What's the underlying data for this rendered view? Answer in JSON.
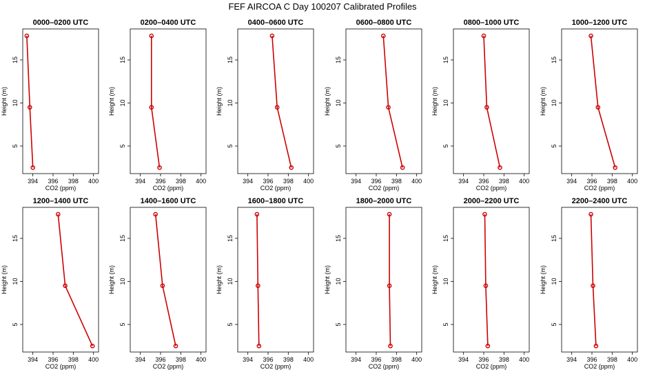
{
  "figure_title": "FEF AIRCOA C  Day 100207  Calibrated Profiles",
  "colors": {
    "series": "#cc0000",
    "frame": "#000000",
    "background": "#ffffff"
  },
  "chart_data": {
    "type": "line",
    "xlabel": "CO2 (ppm)",
    "ylabel": "Height (m)",
    "xlim": [
      393,
      400.5
    ],
    "ylim": [
      1.8,
      18.6
    ],
    "xticks": [
      394,
      396,
      398,
      400
    ],
    "yticks": [
      5,
      10,
      15
    ],
    "heights": [
      2.5,
      9.5,
      17.8
    ],
    "panels": [
      {
        "title": "0000–0200 UTC",
        "co2": [
          394.0,
          393.7,
          393.4
        ]
      },
      {
        "title": "0200–0400 UTC",
        "co2": [
          395.9,
          395.1,
          395.1
        ]
      },
      {
        "title": "0400–0600 UTC",
        "co2": [
          398.3,
          396.9,
          396.4
        ]
      },
      {
        "title": "0600–0800 UTC",
        "co2": [
          398.6,
          397.2,
          396.7
        ]
      },
      {
        "title": "0800–1000 UTC",
        "co2": [
          397.6,
          396.3,
          396.0
        ]
      },
      {
        "title": "1000–1200 UTC",
        "co2": [
          398.3,
          396.6,
          395.9
        ]
      },
      {
        "title": "1200–1400 UTC",
        "co2": [
          399.9,
          397.2,
          396.5
        ]
      },
      {
        "title": "1400–1600 UTC",
        "co2": [
          397.5,
          396.2,
          395.5
        ]
      },
      {
        "title": "1600–1800 UTC",
        "co2": [
          395.1,
          395.0,
          394.9
        ]
      },
      {
        "title": "1800–2000 UTC",
        "co2": [
          397.4,
          397.3,
          397.3
        ]
      },
      {
        "title": "2000–2200 UTC",
        "co2": [
          396.4,
          396.2,
          396.1
        ]
      },
      {
        "title": "2200–2400 UTC",
        "co2": [
          396.4,
          396.1,
          395.9
        ]
      }
    ]
  }
}
